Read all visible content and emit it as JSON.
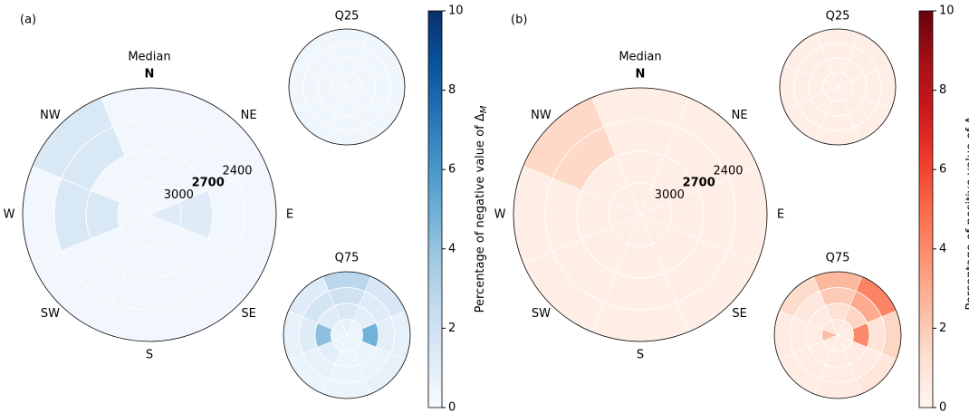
{
  "chart_data": [
    {
      "type": "polar-heatmap",
      "panel_label": "(a)",
      "colorbar_label": "Percentage of negative value of Δ",
      "colorbar_label_sub": "M",
      "colormap": [
        "#f7fbff",
        "#deebf7",
        "#c6dbef",
        "#9ecae1",
        "#6baed6",
        "#4292c6",
        "#2171b5",
        "#08519c",
        "#08306b"
      ],
      "clim": [
        0,
        10
      ],
      "cticks": [
        0,
        2,
        4,
        6,
        8,
        10
      ],
      "directions": [
        "N",
        "NE",
        "E",
        "SE",
        "S",
        "SW",
        "W",
        "NW"
      ],
      "rlim": [
        3300,
        2100
      ],
      "rticks": [
        3000,
        2700,
        2400
      ],
      "bold_rtick": 2700,
      "plots": [
        {
          "title": "Median",
          "values": [
            [
              0.3,
              0.3,
              0.3,
              0.3
            ],
            [
              0.3,
              0.3,
              0.3,
              0.3
            ],
            [
              1.2,
              1.2,
              0.3,
              0.3
            ],
            [
              0.3,
              0.3,
              0.3,
              0.3
            ],
            [
              0.3,
              0.3,
              0.3,
              0.3
            ],
            [
              0.3,
              0.3,
              0.3,
              0.3
            ],
            [
              0.3,
              1.5,
              1.5,
              0.3
            ],
            [
              0.3,
              0.3,
              1.5,
              1.5
            ]
          ]
        },
        {
          "title": "Q25",
          "values": [
            [
              0.4,
              0.4,
              0.4,
              0.4
            ],
            [
              0.4,
              0.4,
              0.4,
              0.4
            ],
            [
              0.4,
              0.4,
              0.4,
              0.4
            ],
            [
              0.4,
              0.4,
              0.4,
              0.4
            ],
            [
              0.4,
              0.4,
              0.4,
              0.4
            ],
            [
              0.4,
              0.4,
              0.4,
              0.4
            ],
            [
              0.4,
              0.4,
              0.4,
              0.4
            ],
            [
              0.4,
              0.4,
              0.4,
              0.4
            ]
          ]
        },
        {
          "title": "Q75",
          "values": [
            [
              0.8,
              1.5,
              2.0,
              2.8
            ],
            [
              0.6,
              1.0,
              1.2,
              1.6
            ],
            [
              0.6,
              4.8,
              1.0,
              0.8
            ],
            [
              0.5,
              0.6,
              0.6,
              0.8
            ],
            [
              0.5,
              0.5,
              0.6,
              0.6
            ],
            [
              0.6,
              1.0,
              0.8,
              0.6
            ],
            [
              0.6,
              4.2,
              1.2,
              0.8
            ],
            [
              0.8,
              1.2,
              1.8,
              1.2
            ]
          ]
        }
      ]
    },
    {
      "type": "polar-heatmap",
      "panel_label": "(b)",
      "colorbar_label": "Percentage of positive value of Δ",
      "colorbar_label_sub": "M",
      "colormap": [
        "#fff5f0",
        "#fee0d2",
        "#fcbba1",
        "#fc9272",
        "#fb6a4a",
        "#ef3b2c",
        "#cb181d",
        "#a50f15",
        "#67000d"
      ],
      "clim": [
        0,
        10
      ],
      "cticks": [
        0,
        2,
        4,
        6,
        8,
        10
      ],
      "directions": [
        "N",
        "NE",
        "E",
        "SE",
        "S",
        "SW",
        "W",
        "NW"
      ],
      "rlim": [
        3300,
        2100
      ],
      "rticks": [
        3000,
        2700,
        2400
      ],
      "bold_rtick": 2700,
      "plots": [
        {
          "title": "Median",
          "values": [
            [
              0.4,
              0.4,
              0.4,
              0.4
            ],
            [
              0.4,
              0.4,
              0.4,
              0.4
            ],
            [
              0.4,
              0.4,
              0.4,
              0.4
            ],
            [
              0.4,
              0.4,
              0.4,
              0.4
            ],
            [
              0.4,
              0.4,
              0.4,
              0.4
            ],
            [
              0.4,
              0.4,
              0.4,
              0.4
            ],
            [
              0.4,
              0.4,
              0.4,
              0.4
            ],
            [
              0.4,
              0.4,
              1.5,
              1.5
            ]
          ]
        },
        {
          "title": "Q25",
          "values": [
            [
              0.4,
              0.4,
              0.4,
              0.4
            ],
            [
              0.4,
              0.4,
              0.4,
              0.4
            ],
            [
              0.4,
              0.4,
              0.4,
              0.4
            ],
            [
              0.4,
              0.4,
              0.4,
              0.4
            ],
            [
              0.4,
              0.4,
              0.4,
              0.4
            ],
            [
              0.4,
              0.4,
              0.4,
              0.4
            ],
            [
              0.4,
              0.4,
              0.4,
              0.4
            ],
            [
              0.4,
              0.4,
              0.4,
              0.4
            ]
          ]
        },
        {
          "title": "Q75",
          "values": [
            [
              0.8,
              1.2,
              2.0,
              2.6
            ],
            [
              0.6,
              1.6,
              3.0,
              4.2
            ],
            [
              0.6,
              4.0,
              1.0,
              1.6
            ],
            [
              0.5,
              0.6,
              0.6,
              0.9
            ],
            [
              0.5,
              0.5,
              0.5,
              0.6
            ],
            [
              0.5,
              0.5,
              0.5,
              0.5
            ],
            [
              2.4,
              0.5,
              0.5,
              0.6
            ],
            [
              0.8,
              0.6,
              0.8,
              1.4
            ]
          ]
        }
      ]
    }
  ]
}
